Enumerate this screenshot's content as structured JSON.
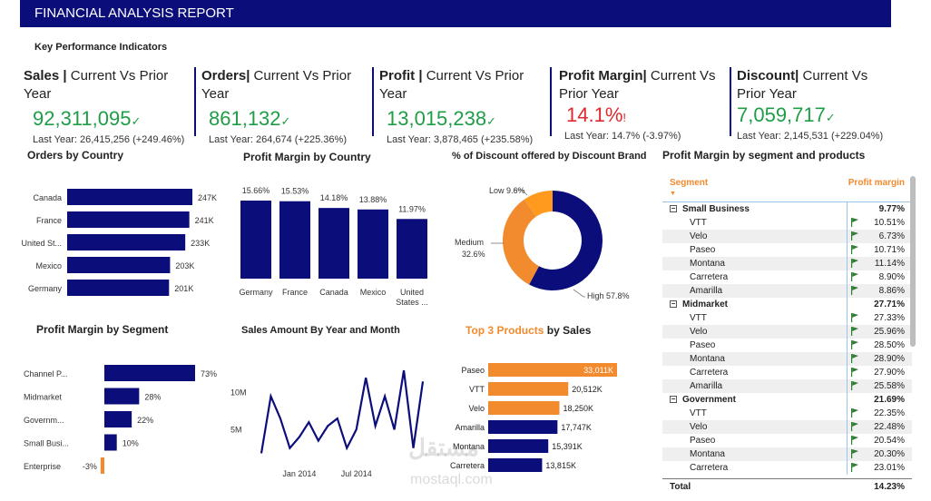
{
  "header": {
    "title": "FINANCIAL ANALYSIS REPORT"
  },
  "kpi_section": {
    "title": "Key Performance Indicators"
  },
  "kpis": [
    {
      "label_bold": "Sales |",
      "label_rest": " Current Vs Prior Year",
      "value": "92,311,095",
      "mark": "✓",
      "status": "good",
      "sub": "Last Year: 26,415,256 (+249.46%)"
    },
    {
      "label_bold": "Orders|",
      "label_rest": " Current Vs Prior Year",
      "value": "861,132",
      "mark": "✓",
      "status": "good",
      "sub": "Last Year: 264,674 (+225.36%)"
    },
    {
      "label_bold": "Profit |",
      "label_rest": " Current Vs Prior Year",
      "value": "13,015,238",
      "mark": "✓",
      "status": "good",
      "sub": "Last Year: 3,878,465 (+235.58%)"
    },
    {
      "label_bold": "Profit Margin|",
      "label_rest": " Current Vs Prior Year",
      "value": "14.1%",
      "mark": "!",
      "status": "bad",
      "sub": "Last Year: 14.7% (-3.97%)"
    },
    {
      "label_bold": "Discount|",
      "label_rest": " Current Vs Prior Year",
      "value": "7,059,717",
      "mark": "✓",
      "status": "good",
      "sub": "Last Year: 2,145,531 (+229.04%)"
    }
  ],
  "colors": {
    "navy": "#0b0e7a",
    "orange": "#f28a2e",
    "good": "#1f9d47",
    "bad": "#e0282e"
  },
  "sections": {
    "orders_by_country": "Orders by Country",
    "profit_margin_by_country": "Profit Margin by Country",
    "discount_by_brand": "% of Discount offered by Discount Brand",
    "pm_segment_products": "Profit Margin by segment and products",
    "pm_by_segment": "Profit Margin by Segment",
    "sales_by_year_month": "Sales Amount By Year and Month",
    "top3_orange": "Top 3 Products",
    "top3_rest": " by Sales"
  },
  "chart_data": [
    {
      "type": "bar",
      "orientation": "horizontal",
      "title": "Orders by Country",
      "categories": [
        "Canada",
        "France",
        "United St...",
        "Mexico",
        "Germany"
      ],
      "values": [
        247,
        241,
        233,
        203,
        201
      ],
      "data_labels": [
        "247K",
        "241K",
        "233K",
        "203K",
        "201K"
      ],
      "unit": "K"
    },
    {
      "type": "bar",
      "orientation": "vertical",
      "title": "Profit Margin by Country",
      "categories": [
        "Germany",
        "France",
        "Canada",
        "Mexico",
        "United States ..."
      ],
      "values": [
        15.66,
        15.53,
        14.18,
        13.88,
        11.97
      ],
      "data_labels": [
        "15.66%",
        "15.53%",
        "14.18%",
        "13.88%",
        "11.97%"
      ]
    },
    {
      "type": "pie",
      "variant": "donut",
      "title": "% of Discount offered by Discount Brand",
      "slices": [
        {
          "name": "High",
          "value": 57.8,
          "label": "High 57.8%",
          "color": "#0b0e7a"
        },
        {
          "name": "Medium",
          "value": 32.6,
          "label_line1": "Medium",
          "label_line2": "32.6%",
          "color": "#f28a2e"
        },
        {
          "name": "Low",
          "value": 9.6,
          "label": "Low 9.6%",
          "color": "#ff9a1f"
        }
      ]
    },
    {
      "type": "bar",
      "orientation": "horizontal",
      "title": "Profit Margin by Segment",
      "categories": [
        "Channel P...",
        "Midmarket",
        "Governm...",
        "Small Busi...",
        "Enterprise"
      ],
      "values": [
        73,
        28,
        22,
        10,
        -3
      ],
      "data_labels": [
        "73%",
        "28%",
        "22%",
        "10%",
        "-3%"
      ]
    },
    {
      "type": "line",
      "title": "Sales Amount By Year and Month",
      "values": [
        1.8,
        9.5,
        6.5,
        2.5,
        4.0,
        6.0,
        3.5,
        5.5,
        6.5,
        2.5,
        5.0,
        12.0,
        5.5,
        9.5,
        5.0,
        13.0,
        2.5,
        11.5
      ],
      "ytick_labels": [
        "10M",
        "5M"
      ],
      "yticks": [
        10,
        5
      ],
      "xtick_labels": [
        "Jan 2014",
        "Jul 2014"
      ],
      "xtick_index": [
        4,
        10
      ]
    },
    {
      "type": "bar",
      "orientation": "horizontal",
      "title": "Top 3 Products by Sales",
      "categories": [
        "Paseo",
        "VTT",
        "Velo",
        "Amarilla",
        "Montana",
        "Carretera"
      ],
      "values": [
        33011,
        20512,
        18250,
        17747,
        15391,
        13815
      ],
      "data_labels": [
        "33,011K",
        "20,512K",
        "18,250K",
        "17,747K",
        "15,391K",
        "13,815K"
      ],
      "highlight_top": 3
    }
  ],
  "table": {
    "headers": {
      "segment": "Segment",
      "margin": "Profit margin"
    },
    "groups": [
      {
        "name": "Small Business",
        "value": "9.77%",
        "rows": [
          {
            "name": "VTT",
            "value": "10.51%"
          },
          {
            "name": "Velo",
            "value": "6.73%"
          },
          {
            "name": "Paseo",
            "value": "10.71%"
          },
          {
            "name": "Montana",
            "value": "11.14%"
          },
          {
            "name": "Carretera",
            "value": "8.90%"
          },
          {
            "name": "Amarilla",
            "value": "8.86%"
          }
        ]
      },
      {
        "name": "Midmarket",
        "value": "27.71%",
        "rows": [
          {
            "name": "VTT",
            "value": "27.33%"
          },
          {
            "name": "Velo",
            "value": "25.96%"
          },
          {
            "name": "Paseo",
            "value": "28.50%"
          },
          {
            "name": "Montana",
            "value": "28.90%"
          },
          {
            "name": "Carretera",
            "value": "27.90%"
          },
          {
            "name": "Amarilla",
            "value": "25.58%"
          }
        ]
      },
      {
        "name": "Government",
        "value": "21.69%",
        "rows": [
          {
            "name": "VTT",
            "value": "22.35%"
          },
          {
            "name": "Velo",
            "value": "22.48%"
          },
          {
            "name": "Paseo",
            "value": "20.54%"
          },
          {
            "name": "Montana",
            "value": "20.30%"
          },
          {
            "name": "Carretera",
            "value": "23.01%"
          }
        ]
      }
    ],
    "total": {
      "name": "Total",
      "value": "14.23%"
    }
  },
  "watermark": {
    "arabic": "مستقل",
    "latin": "mostaql.com"
  }
}
